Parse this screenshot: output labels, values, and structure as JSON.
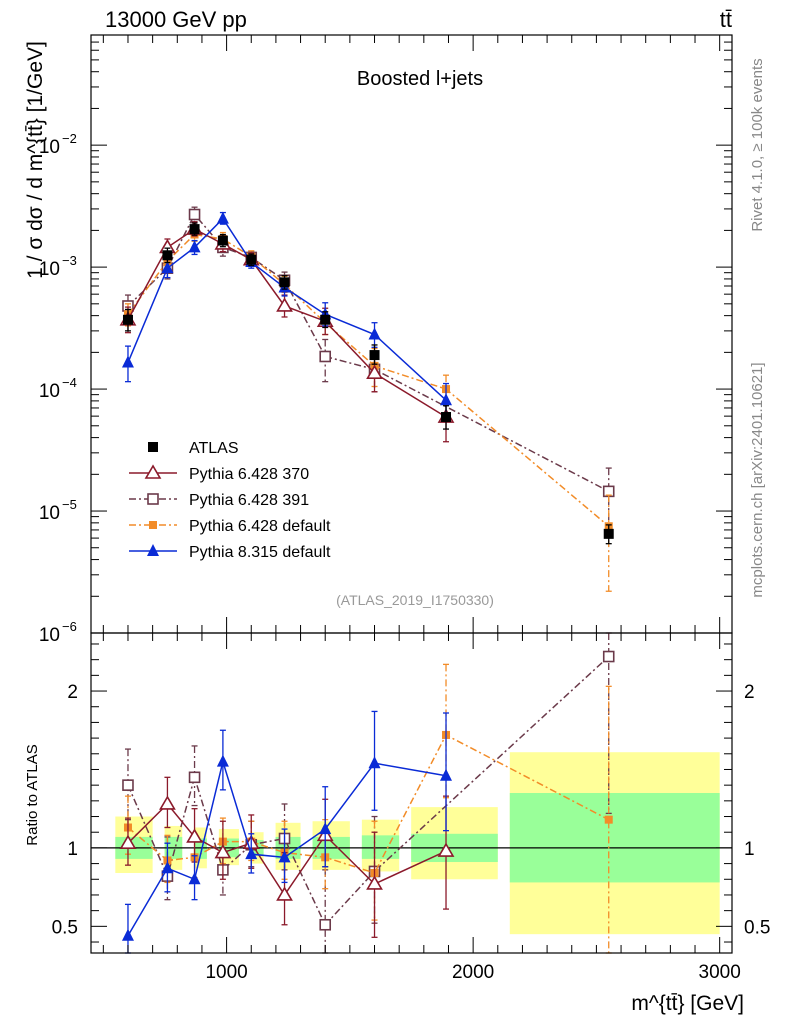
{
  "header": {
    "energy_label": "13000 GeV pp",
    "process_label": "tt̄"
  },
  "side_text": {
    "rivet": "Rivet 4.1.0, ≥ 100k events",
    "mcplots": "mcplots.cern.ch [arXiv:2401.10621]"
  },
  "colors": {
    "atlas": "#000000",
    "py6_370": "#8b1a2b",
    "py6_391": "#6b3a4a",
    "py6_default": "#f28c28",
    "py8_default": "#0a2bd6",
    "band_stat": "#99ff99",
    "band_total": "#ffff99"
  },
  "chart_data": [
    {
      "type": "scatter",
      "panel": "main",
      "title": "Boosted l+jets",
      "analysis_tag": "(ATLAS_2019_I1750330)",
      "xlabel": "m^{tt̄} [GeV]",
      "ylabel": "1 / σ dσ / d m^{tt̄} [1/GeV]",
      "yscale": "log",
      "xlim": [
        450,
        3050
      ],
      "ylim": [
        1e-06,
        0.08
      ],
      "y_ticks": [
        {
          "value": 1e-06,
          "mant": "10",
          "exp": "−6"
        },
        {
          "value": 1e-05,
          "mant": "10",
          "exp": "−5"
        },
        {
          "value": 0.0001,
          "mant": "10",
          "exp": "−4"
        },
        {
          "value": 0.001,
          "mant": "10",
          "exp": "−3"
        },
        {
          "value": 0.01,
          "mant": "10",
          "exp": "−2"
        }
      ],
      "bins": [
        [
          500,
          700
        ],
        [
          700,
          820
        ],
        [
          820,
          920
        ],
        [
          920,
          1050
        ],
        [
          1050,
          1150
        ],
        [
          1150,
          1300
        ],
        [
          1300,
          1500
        ],
        [
          1500,
          1700
        ],
        [
          1700,
          2100
        ],
        [
          2100,
          3000
        ]
      ],
      "x": [
        600,
        760,
        870,
        985,
        1100,
        1235,
        1400,
        1600,
        1890,
        2550
      ],
      "series": [
        {
          "name": "ATLAS",
          "key": "atlas",
          "values": [
            0.00037,
            0.00125,
            0.00205,
            0.00165,
            0.00115,
            0.00075,
            0.00037,
            0.00019,
            5.9e-05,
            6.5e-06
          ],
          "err_up": [
            8e-05,
            0.00018,
            0.00025,
            0.0002,
            0.00013,
            0.0001,
            6e-05,
            4e-05,
            1.4e-05,
            1.2e-06
          ],
          "err_dn": [
            7e-05,
            0.00016,
            0.00022,
            0.00018,
            0.00012,
            9e-05,
            5e-05,
            3e-05,
            1.2e-05,
            1.1e-06
          ]
        },
        {
          "name": "Pythia 6.428 370",
          "key": "py6_370",
          "values": [
            0.00037,
            0.00145,
            0.00205,
            0.00155,
            0.00115,
            0.00048,
            0.00036,
            0.000135,
            5.9e-05
          ],
          "err_up": [
            0.0001,
            0.00025,
            0.0003,
            0.00025,
            0.00015,
            0.00011,
            0.0001,
            5e-05,
            2e-05
          ],
          "err_dn": [
            8e-05,
            0.0002,
            0.00025,
            0.00021,
            0.00013,
            9e-05,
            8e-05,
            4e-05,
            2.2e-05
          ]
        },
        {
          "name": "Pythia 6.428 391",
          "key": "py6_391",
          "values": [
            0.00048,
            0.00098,
            0.0027,
            0.00145,
            0.0012,
            0.00078,
            0.000185,
            0.000145,
            1.45e-05
          ],
          "err_up": [
            0.00011,
            0.0002,
            0.0004,
            0.00025,
            0.00015,
            0.00013,
            7e-05,
            6e-05,
            8e-06
          ],
          "err_dn": [
            0.0001,
            0.00018,
            0.00035,
            0.00022,
            0.00014,
            0.00012,
            7e-05,
            5e-05,
            7e-06
          ],
          "x": [
            600,
            760,
            870,
            985,
            1100,
            1235,
            1400,
            1600,
            2550
          ]
        },
        {
          "name": "Pythia 6.428 default",
          "key": "py6_default",
          "values": [
            0.00041,
            0.00112,
            0.00185,
            0.0017,
            0.00122,
            0.00072,
            0.00035,
            0.000155,
            0.0001,
            7.5e-06
          ],
          "err_up": [
            9e-05,
            0.00017,
            0.00025,
            0.00022,
            0.00014,
            0.00012,
            8e-05,
            6e-05,
            3e-05,
            6e-06
          ],
          "err_dn": [
            8e-05,
            0.00015,
            0.00022,
            0.0002,
            0.00013,
            0.0001,
            7e-05,
            5e-05,
            2.5e-05,
            5.3e-06
          ]
        },
        {
          "name": "Pythia 8.315 default",
          "key": "py8_default",
          "values": [
            0.000165,
            0.00098,
            0.00145,
            0.0025,
            0.0011,
            0.00068,
            0.00041,
            0.00028,
            8.1e-05
          ],
          "err_up": [
            6e-05,
            0.00018,
            0.0002,
            0.0003,
            0.00013,
            0.00011,
            0.0001,
            7e-05,
            3e-05
          ],
          "err_dn": [
            5e-05,
            0.00016,
            0.00018,
            0.00025,
            0.00012,
            0.0001,
            8e-05,
            6e-05,
            2e-05
          ],
          "x": [
            600,
            760,
            870,
            985,
            1100,
            1235,
            1400,
            1600,
            1890
          ]
        }
      ]
    },
    {
      "type": "scatter",
      "panel": "ratio",
      "ylabel": "Ratio to ATLAS",
      "xlabel": "m^{tt̄} [GeV]",
      "xlim": [
        450,
        3050
      ],
      "ylim": [
        0.33,
        2.37
      ],
      "x_ticks": [
        1000,
        2000,
        3000
      ],
      "y_ticks": [
        0.5,
        1,
        2
      ],
      "reference_line": 1,
      "band_stat": [
        [
          0.93,
          1.07
        ],
        [
          0.93,
          1.07
        ],
        [
          0.93,
          1.06
        ],
        [
          0.94,
          1.06
        ],
        [
          0.95,
          1.05
        ],
        [
          0.93,
          1.07
        ],
        [
          0.93,
          1.07
        ],
        [
          0.93,
          1.08
        ],
        [
          0.91,
          1.09
        ],
        [
          0.78,
          1.35
        ]
      ],
      "band_total": [
        [
          0.84,
          1.2
        ],
        [
          0.86,
          1.14
        ],
        [
          0.87,
          1.13
        ],
        [
          0.89,
          1.12
        ],
        [
          0.9,
          1.1
        ],
        [
          0.86,
          1.16
        ],
        [
          0.86,
          1.17
        ],
        [
          0.85,
          1.18
        ],
        [
          0.8,
          1.26
        ],
        [
          0.45,
          1.61
        ]
      ],
      "x": [
        600,
        760,
        870,
        985,
        1100,
        1235,
        1400,
        1600,
        1890,
        2550
      ],
      "series": [
        {
          "name": "Pythia 6.428 370",
          "key": "py6_370",
          "values": [
            1.03,
            1.28,
            1.07,
            0.97,
            1.03,
            0.7,
            1.08,
            0.77,
            0.98
          ],
          "err_up": [
            0.16,
            0.17,
            0.18,
            0.2,
            0.18,
            0.27,
            0.23,
            0.33,
            0.35
          ],
          "err_dn": [
            0.14,
            0.15,
            0.16,
            0.17,
            0.16,
            0.19,
            0.2,
            0.34,
            0.37
          ]
        },
        {
          "name": "Pythia 6.428 391",
          "key": "py6_391",
          "values": [
            1.4,
            0.82,
            1.45,
            0.86,
            1.02,
            1.06,
            0.51,
            0.85,
            2.22
          ],
          "err_up": [
            0.23,
            0.25,
            0.2,
            0.18,
            0.15,
            0.22,
            0.35,
            0.35,
            0.88
          ],
          "err_dn": [
            0.22,
            0.15,
            0.18,
            0.16,
            0.14,
            0.2,
            0.3,
            0.33,
            1.0
          ],
          "x": [
            600,
            760,
            870,
            985,
            1100,
            1235,
            1400,
            1600,
            2550
          ]
        },
        {
          "name": "Pythia 6.428 default",
          "key": "py6_default",
          "values": [
            1.13,
            0.92,
            0.94,
            1.04,
            1.04,
            0.97,
            0.94,
            0.84,
            1.72,
            1.18
          ],
          "err_up": [
            0.2,
            0.16,
            0.15,
            0.15,
            0.13,
            0.2,
            0.24,
            0.33,
            0.45,
            0.85
          ],
          "err_dn": [
            0.17,
            0.14,
            0.13,
            0.14,
            0.12,
            0.17,
            0.2,
            0.3,
            0.4,
            0.85
          ]
        },
        {
          "name": "Pythia 8.315 default",
          "key": "py8_default",
          "values": [
            0.44,
            0.87,
            0.8,
            1.55,
            0.96,
            0.94,
            1.12,
            1.54,
            1.46
          ],
          "err_up": [
            0.2,
            0.16,
            0.15,
            0.2,
            0.13,
            0.18,
            0.27,
            0.33,
            0.4
          ],
          "err_dn": [
            0.16,
            0.15,
            0.13,
            0.18,
            0.12,
            0.16,
            0.24,
            0.3,
            0.35
          ],
          "x": [
            600,
            760,
            870,
            985,
            1100,
            1235,
            1400,
            1600,
            1890
          ]
        }
      ]
    }
  ]
}
